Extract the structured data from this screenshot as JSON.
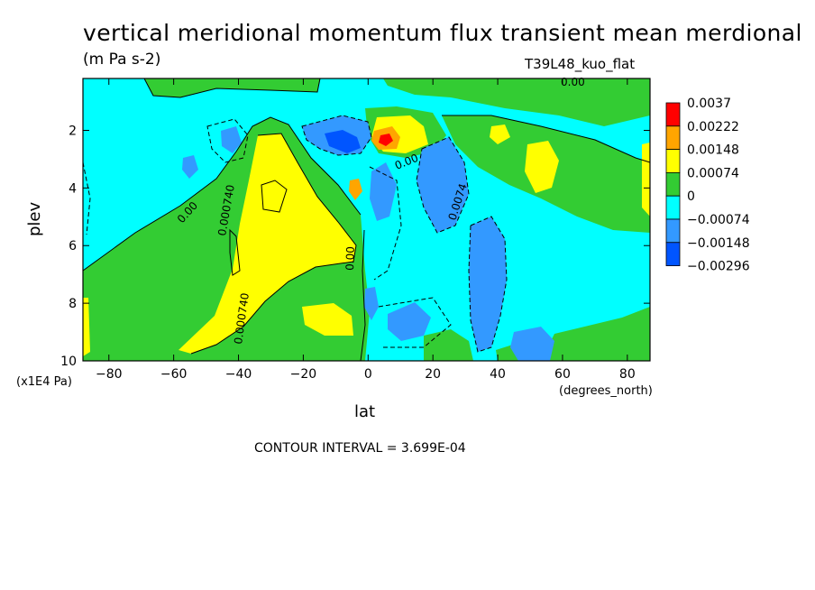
{
  "title": "vertical meridional momentum flux transient mean merdional",
  "units": "(m Pa s-2)",
  "dataset": "T39L48_kuo_flat",
  "y_axis_label": "plev",
  "y_axis_unit": "(x1E4 Pa)",
  "x_axis_label": "lat",
  "x_axis_unit": "(degrees_north)",
  "contour_interval_text": "CONTOUR INTERVAL = 3.699E-04",
  "chart_data": {
    "type": "heatmap",
    "subtype": "filled-contour",
    "title": "vertical meridional momentum flux transient mean merdional",
    "xlabel": "lat",
    "ylabel": "plev",
    "x_ticks": [
      -80,
      -60,
      -40,
      -20,
      0,
      20,
      40,
      60,
      80
    ],
    "y_ticks": [
      2,
      4,
      6,
      8,
      10
    ],
    "xlim": [
      -88,
      87
    ],
    "ylim": [
      10,
      0.2
    ],
    "y_inverted": true,
    "colorbar": {
      "labels": [
        "0.0037",
        "0.00222",
        "0.00148",
        "0.00074",
        "0",
        "-0.00074",
        "-0.00148",
        "-0.00296"
      ],
      "colors": [
        "#ff0000",
        "#ffa500",
        "#ffff00",
        "#33cc33",
        "#00ffff",
        "#3399ff",
        "#0055ff"
      ]
    },
    "contour_labels": [
      "0.00",
      "0.000740",
      "0.00",
      "0.000740",
      "0.00",
      "0.00",
      "0.0074",
      "0.00"
    ],
    "colors": {
      "background_field": "#00ffff",
      "positive_1": "#33cc33",
      "positive_2": "#ffff00",
      "positive_3": "#ffa500",
      "peak": "#ff0000",
      "negative_1": "#3399ff",
      "negative_2": "#0055ff"
    }
  }
}
